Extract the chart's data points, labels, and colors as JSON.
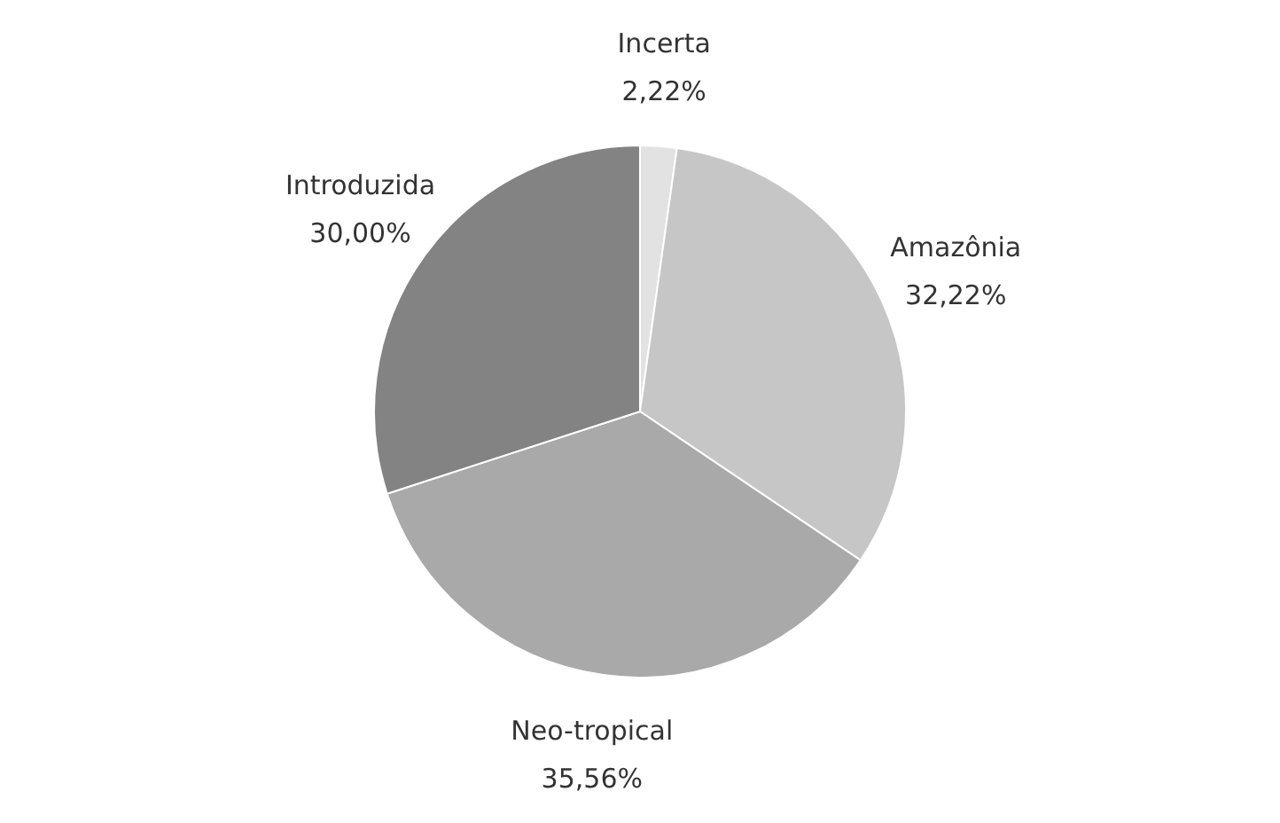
{
  "chart_data": {
    "type": "pie",
    "categories": [
      "Incerta",
      "Amazônia",
      "Neo-tropical",
      "Introduzida"
    ],
    "values": [
      2.22,
      32.22,
      35.56,
      30.0
    ],
    "colors": [
      "#e2e2e2",
      "#c6c6c6",
      "#a9a9a9",
      "#838383"
    ],
    "value_labels": [
      "2,22%",
      "32,22%",
      "35,56%",
      "30,00%"
    ],
    "legend": false
  }
}
